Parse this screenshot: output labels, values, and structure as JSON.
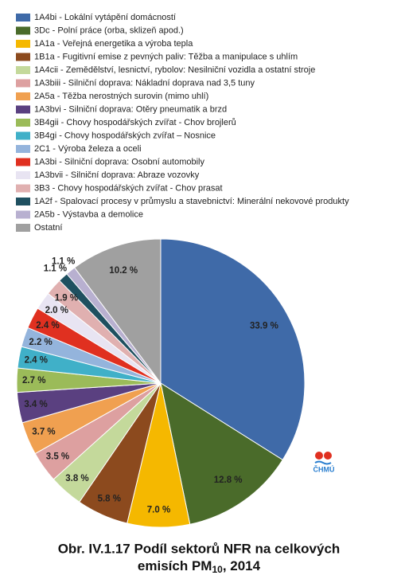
{
  "chart_data": {
    "type": "pie",
    "title": {
      "line1": "Obr. IV.1.17  Podíl sektorů NFR na celkových",
      "line2_main": "emisích PM",
      "line2_sub": "10",
      "line2_end": ", 2014"
    },
    "logo_text": "ČHMÚ",
    "categories": [
      "1A4bi - Lokální vytápění domácností",
      "3Dc - Polní práce (orba, sklizeň apod.)",
      "1A1a - Veřejná energetika a výroba tepla",
      "1B1a - Fugitivní emise z pevných paliv: Těžba a manipulace s uhlím",
      "1A4cii - Zemědělství, lesnictví, rybolov: Nesilniční vozidla a ostatní stroje",
      "1A3biii - Silniční doprava: Nákladní doprava nad 3,5 tuny",
      "2A5a - Těžba nerostných surovin (mimo uhlí)",
      "1A3bvi - Silniční doprava: Otěry pneumatik a brzd",
      "3B4gii - Chovy hospodářských zvířat - Chov brojlerů",
      "3B4gi - Chovy hospodářských zvířat – Nosnice",
      "2C1 - Výroba železa a oceli",
      "1A3bi - Silniční doprava: Osobní automobily",
      "1A3bvii - Silniční doprava: Abraze vozovky",
      "3B3 - Chovy hospodářských zvířat - Chov prasat",
      "1A2f - Spalovací procesy v průmyslu a stavebnictví: Minerální nekovové produkty",
      "2A5b - Výstavba a demolice",
      "Ostatní"
    ],
    "values": [
      33.9,
      12.8,
      7.0,
      5.8,
      3.8,
      3.5,
      3.7,
      3.4,
      2.7,
      2.4,
      2.2,
      2.4,
      2.0,
      1.9,
      1.1,
      1.1,
      10.2
    ],
    "value_labels": [
      "33.9 %",
      "12.8 %",
      "7.0 %",
      "5.8 %",
      "3.8 %",
      "3.5 %",
      "3.7 %",
      "3.4 %",
      "2.7 %",
      "2.4 %",
      "2.2 %",
      "2.4 %",
      "2.0 %",
      "1.9 %",
      "1.1 %",
      "1.1 %",
      "10.2 %"
    ],
    "colors": [
      "#3f6aa8",
      "#4a6b2a",
      "#f5b800",
      "#8c4a1e",
      "#c4d99b",
      "#dda0a0",
      "#f0a050",
      "#5a4080",
      "#9bbb59",
      "#40b0c8",
      "#94b4dc",
      "#e03020",
      "#e8e4f2",
      "#e0b0b0",
      "#1f5060",
      "#b8b0d0",
      "#a0a0a0"
    ]
  }
}
